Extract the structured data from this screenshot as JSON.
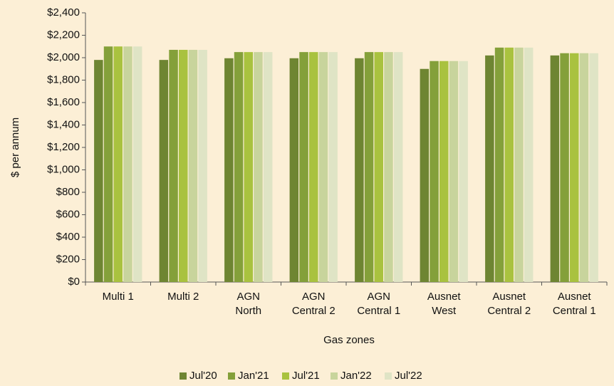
{
  "chart_data": {
    "type": "bar",
    "categories": [
      "Multi 1",
      "Multi 2",
      "AGN\nNorth",
      "AGN\nCentral 2",
      "AGN\nCentral 1",
      "Ausnet\nWest",
      "Ausnet\nCentral 2",
      "Ausnet\nCentral 1"
    ],
    "series": [
      {
        "name": "Jul'20",
        "color": "#6e8532",
        "values": [
          1980,
          1980,
          1995,
          1995,
          1995,
          1900,
          2020,
          2020
        ]
      },
      {
        "name": "Jan'21",
        "color": "#84a03a",
        "values": [
          2100,
          2070,
          2050,
          2050,
          2050,
          1970,
          2090,
          2040
        ]
      },
      {
        "name": "Jul'21",
        "color": "#a9c23f",
        "values": [
          2100,
          2070,
          2050,
          2050,
          2050,
          1970,
          2090,
          2040
        ]
      },
      {
        "name": "Jan'22",
        "color": "#c8d49c",
        "values": [
          2100,
          2070,
          2050,
          2050,
          2050,
          1970,
          2090,
          2040
        ]
      },
      {
        "name": "Jul'22",
        "color": "#dfe4c5",
        "values": [
          2100,
          2070,
          2050,
          2050,
          2050,
          1970,
          2090,
          2040
        ]
      }
    ],
    "ylabel": "$ per annum",
    "xlabel": "Gas zones",
    "ylim": [
      0,
      2400
    ],
    "yticks": [
      {
        "value": 0,
        "label": "$0"
      },
      {
        "value": 200,
        "label": "$200"
      },
      {
        "value": 400,
        "label": "$400"
      },
      {
        "value": 600,
        "label": "$600"
      },
      {
        "value": 800,
        "label": "$800"
      },
      {
        "value": 1000,
        "label": "$1,000"
      },
      {
        "value": 1200,
        "label": "$1,200"
      },
      {
        "value": 1400,
        "label": "$1,400"
      },
      {
        "value": 1600,
        "label": "$1,600"
      },
      {
        "value": 1800,
        "label": "$1,800"
      },
      {
        "value": 2000,
        "label": "$2,000"
      },
      {
        "value": 2200,
        "label": "$2,200"
      },
      {
        "value": 2400,
        "label": "$2,400"
      }
    ],
    "legend": "bottom"
  }
}
